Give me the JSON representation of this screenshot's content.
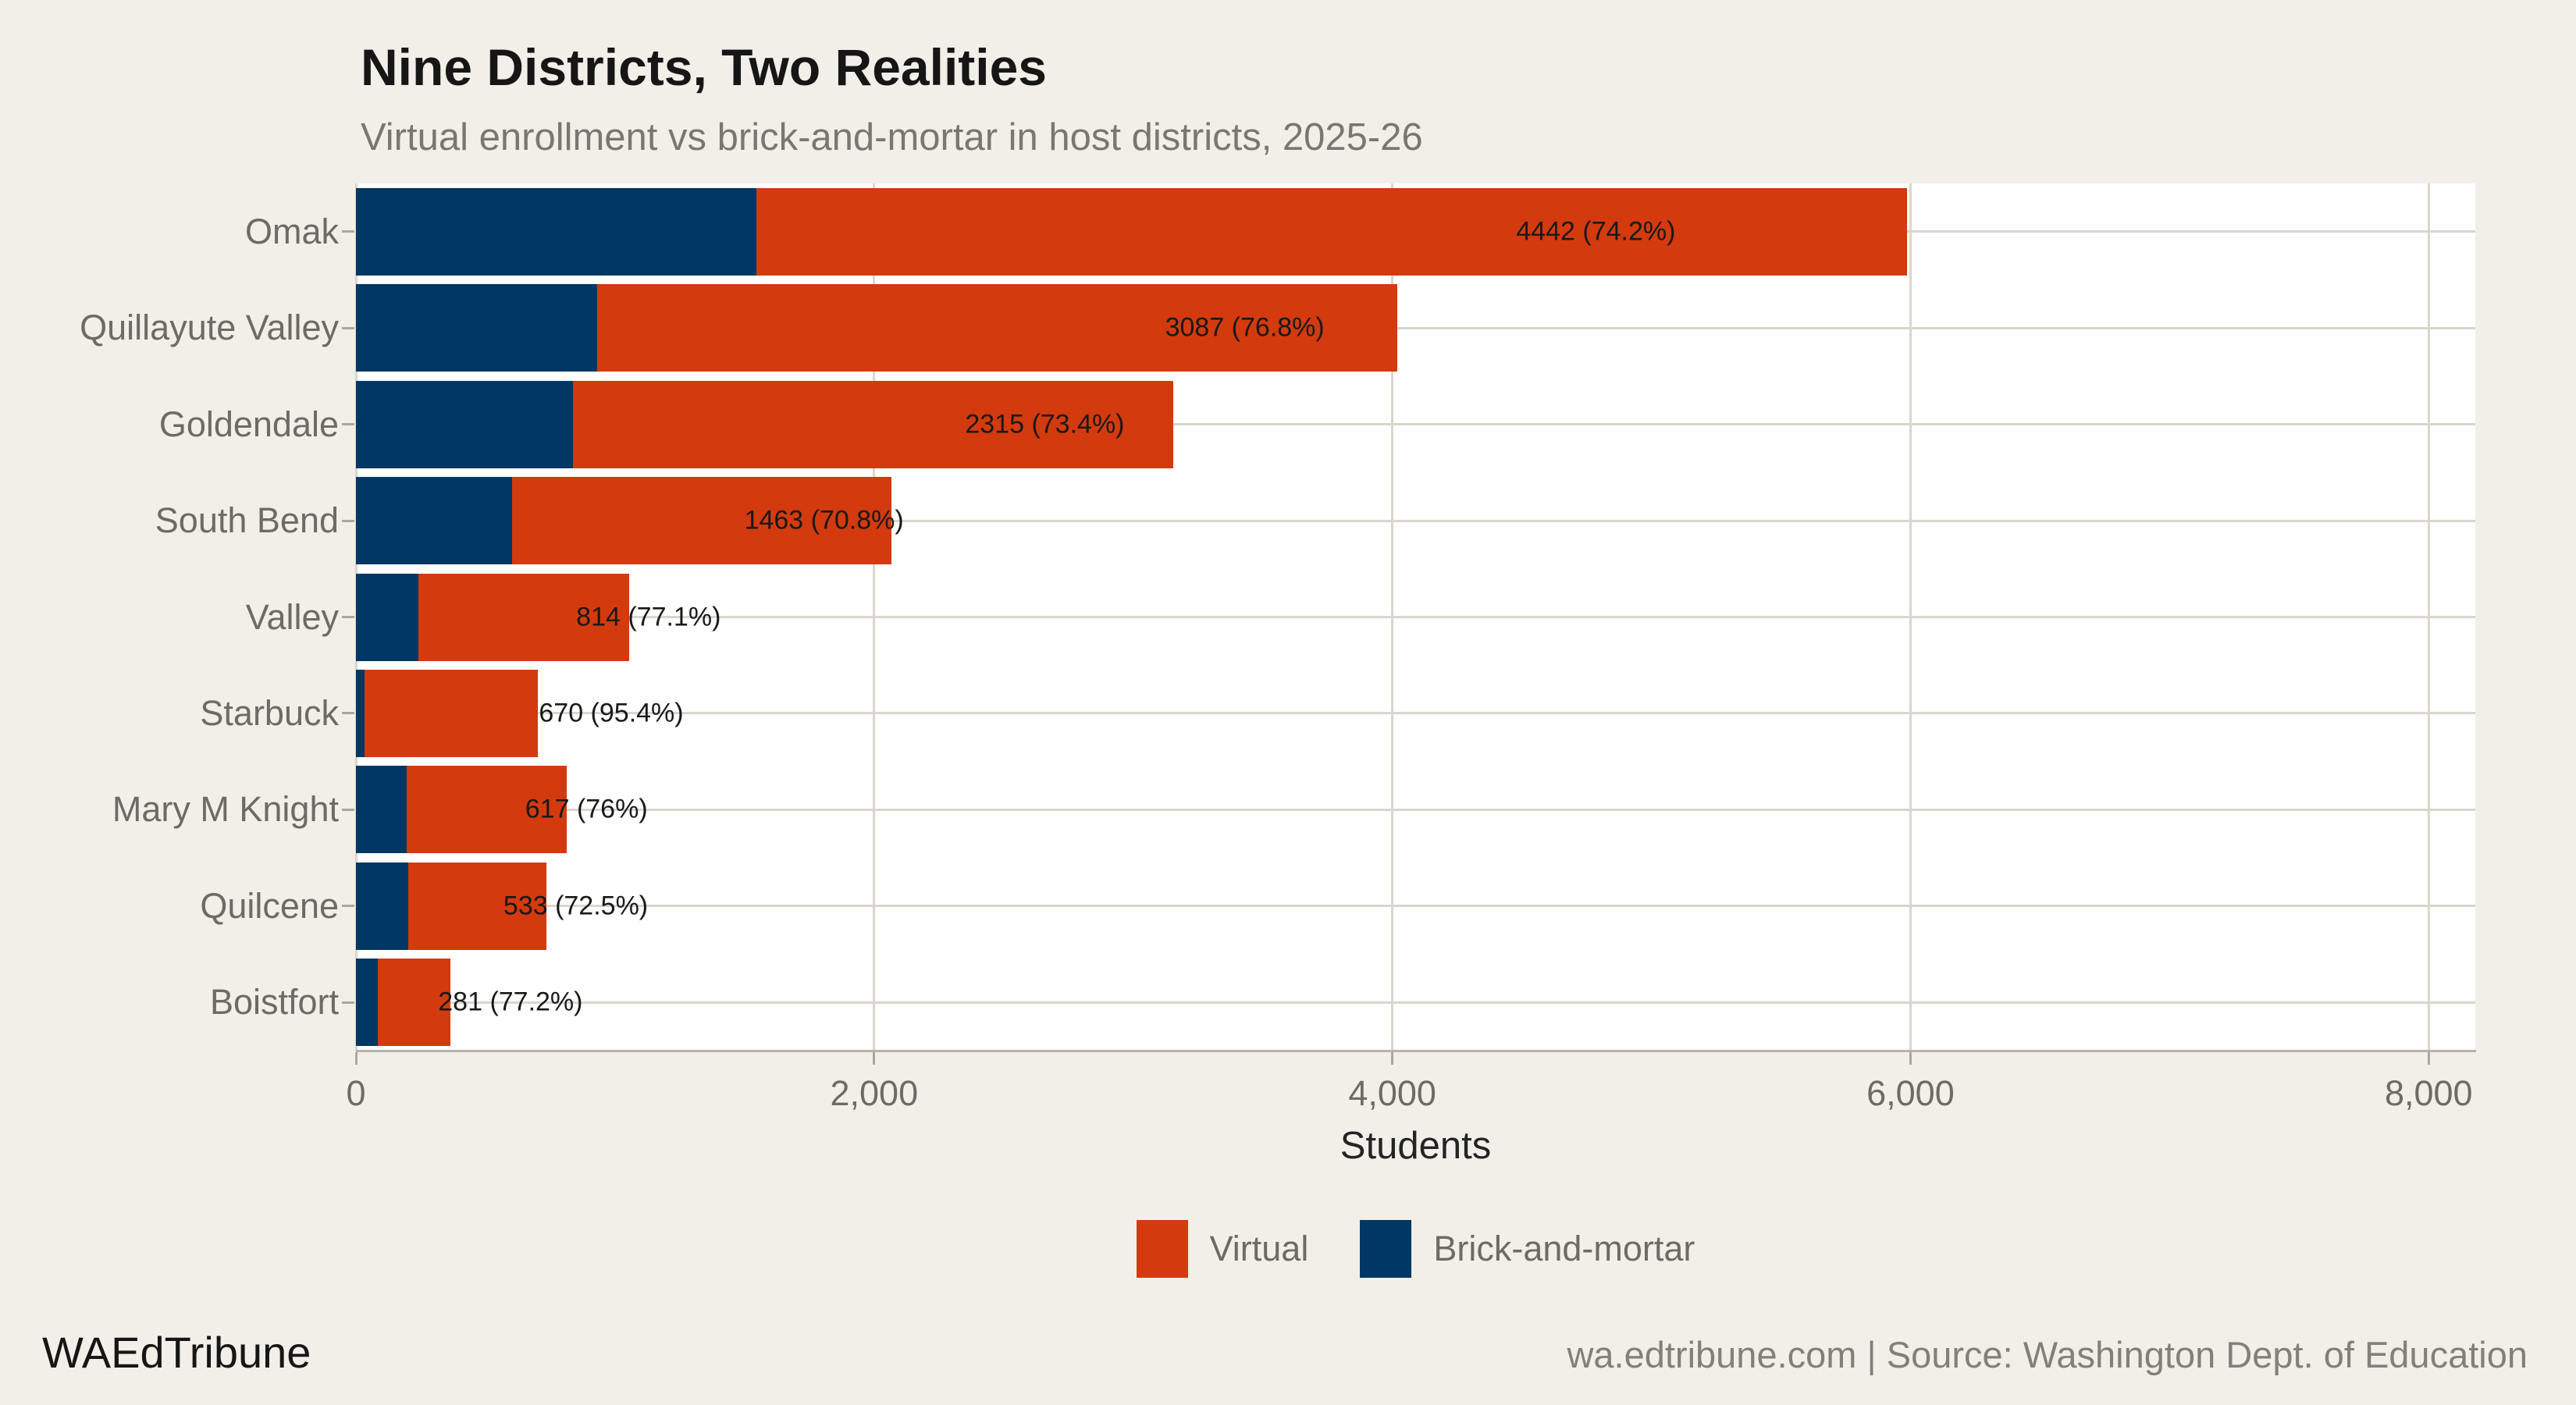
{
  "title": "Nine Districts, Two Realities",
  "subtitle": "Virtual enrollment vs brick-and-mortar in host districts, 2025-26",
  "footer": {
    "brand": "WAEdTribune",
    "source": "wa.edtribune.com | Source: Washington Dept. of Education"
  },
  "colors": {
    "background": "#F2EFE9",
    "panel": "#FFFFFF",
    "gridline": "#DAD6CC",
    "virtual": "#D33A0E",
    "brick_and_mortar": "#003763",
    "axis_text": "#6E6A64"
  },
  "legend": [
    {
      "label": "Virtual",
      "color": "#D33A0E"
    },
    {
      "label": "Brick-and-mortar",
      "color": "#003763"
    }
  ],
  "chart_data": {
    "type": "bar",
    "orientation": "horizontal",
    "stacked": true,
    "title": "Nine Districts, Two Realities",
    "subtitle": "Virtual enrollment vs brick-and-mortar in host districts, 2025-26",
    "xlabel": "Students",
    "ylabel": "",
    "xlim": [
      0,
      8180
    ],
    "xticks": [
      0,
      2000,
      4000,
      6000,
      8000
    ],
    "xtick_labels": [
      "0",
      "2,000",
      "4,000",
      "6,000",
      "8,000"
    ],
    "grid": true,
    "legend_position": "bottom",
    "categories": [
      "Omak",
      "Quillayute Valley",
      "Goldendale",
      "South Bend",
      "Valley",
      "Starbuck",
      "Mary M Knight",
      "Quilcene",
      "Boistfort"
    ],
    "series": [
      {
        "name": "Brick-and-mortar",
        "color": "#003763",
        "values": [
          1545,
          932,
          839,
          603,
          242,
          32,
          195,
          202,
          83
        ]
      },
      {
        "name": "Virtual",
        "color": "#D33A0E",
        "values": [
          4442,
          3087,
          2315,
          1463,
          814,
          670,
          617,
          533,
          281
        ]
      }
    ],
    "totals": [
      5987,
      4019,
      3154,
      2066,
      1056,
      702,
      812,
      735,
      364
    ],
    "bar_labels": [
      "4442 (74.2%)",
      "3087 (76.8%)",
      "2315 (73.4%)",
      "1463 (70.8%)",
      "814 (77.1%)",
      "670 (95.4%)",
      "617 (76%)",
      "533 (72.5%)",
      "281 (77.2%)"
    ]
  }
}
